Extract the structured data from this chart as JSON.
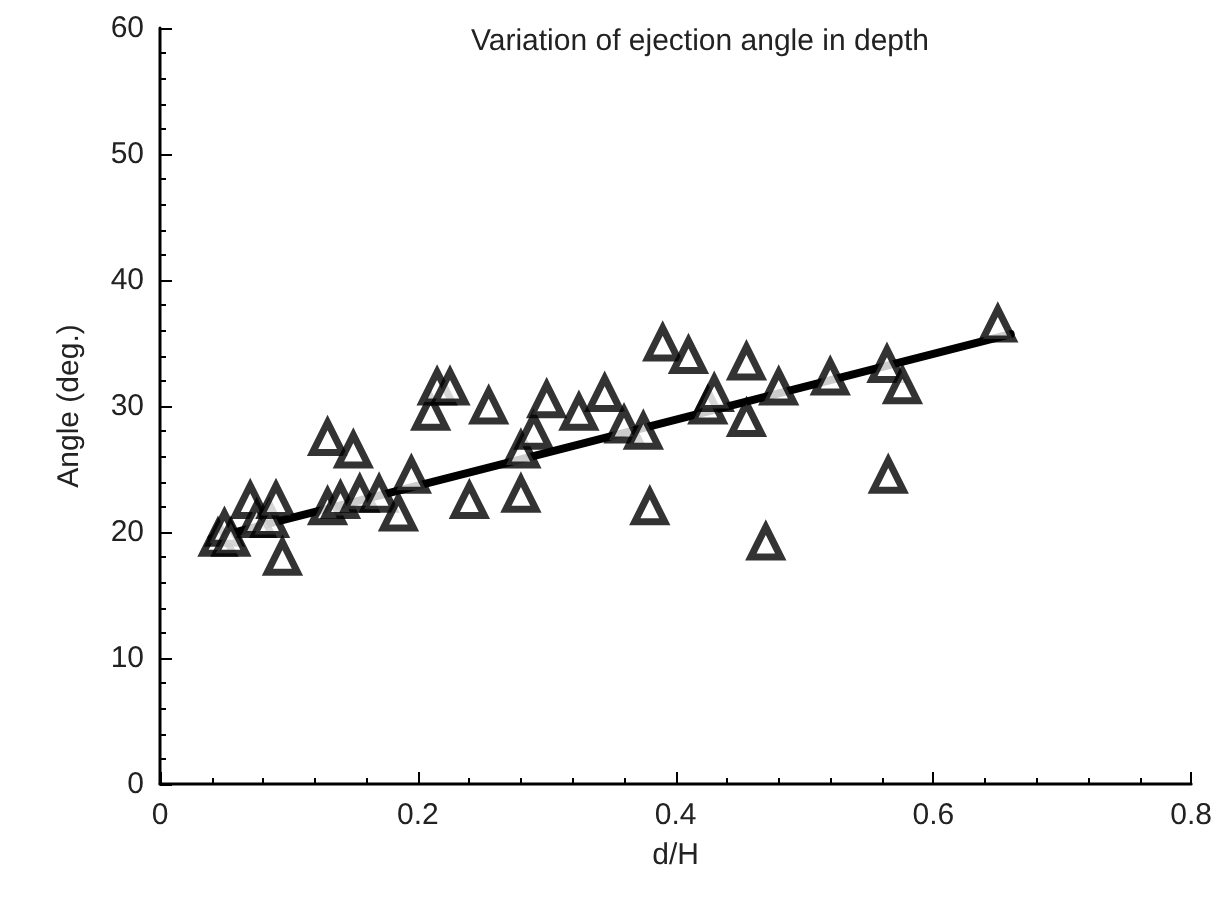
{
  "chart_data": {
    "type": "scatter",
    "title": "Variation of ejection angle in depth",
    "xlabel": "d/H",
    "ylabel": "Angle (deg.)",
    "xlim": [
      0,
      0.8
    ],
    "xticks": [
      0,
      0.2,
      0.4,
      0.6,
      0.8
    ],
    "ylim": [
      0,
      60
    ],
    "yticks": [
      0,
      10,
      20,
      30,
      40,
      50,
      60
    ],
    "grid": false,
    "marker": "triangle",
    "series": [
      {
        "color": "#000000",
        "x": [
          0.045,
          0.05,
          0.055,
          0.07,
          0.075,
          0.085,
          0.09,
          0.095,
          0.13,
          0.13,
          0.14,
          0.15,
          0.155,
          0.17,
          0.185,
          0.195,
          0.21,
          0.215,
          0.225,
          0.24,
          0.255,
          0.28,
          0.28,
          0.29,
          0.3,
          0.325,
          0.345,
          0.36,
          0.375,
          0.38,
          0.39,
          0.41,
          0.425,
          0.43,
          0.455,
          0.455,
          0.47,
          0.48,
          0.52,
          0.565,
          0.564,
          0.576,
          0.65
        ],
        "values": [
          19.5,
          20.3,
          19.5,
          22.5,
          21,
          21,
          22.5,
          18,
          27.5,
          22,
          22.5,
          26.5,
          23,
          23,
          21.5,
          24.5,
          29.5,
          31.5,
          31.5,
          22.5,
          30,
          23,
          26.5,
          28,
          30.5,
          29.5,
          31,
          28.5,
          28,
          22,
          35,
          34,
          30,
          31,
          33.5,
          29,
          19.2,
          31.5,
          32.3,
          24.5,
          33.3,
          31.6,
          36.5
        ]
      },
      {
        "type": "line",
        "color": "#000000",
        "x": [
          0.04,
          0.66
        ],
        "values": [
          19.5,
          35.7
        ],
        "marker": "none",
        "line_style": "solid"
      }
    ]
  }
}
